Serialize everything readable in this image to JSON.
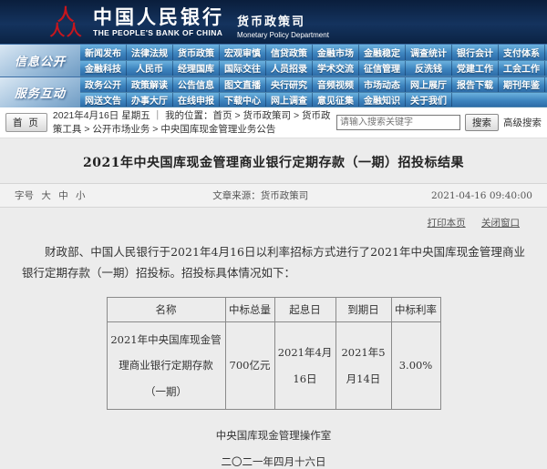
{
  "header": {
    "bank_cn": "中国人民银行",
    "bank_en": "THE PEOPLE'S BANK OF CHINA",
    "dept_cn": "货币政策司",
    "dept_en": "Monetary Policy Department"
  },
  "nav": {
    "sections": [
      {
        "label": "信息公开",
        "rows": [
          [
            "新闻发布",
            "法律法规",
            "货币政策",
            "宏观审慎",
            "信贷政策",
            "金融市场",
            "金融稳定",
            "调查统计",
            "银行会计",
            "支付体系"
          ],
          [
            "金融科技",
            "人民币",
            "经理国库",
            "国际交往",
            "人员招录",
            "学术交流",
            "征信管理",
            "反洗钱",
            "党建工作",
            "工会工作"
          ]
        ]
      },
      {
        "label": "服务互动",
        "rows": [
          [
            "政务公开",
            "政策解读",
            "公告信息",
            "图文直播",
            "央行研究",
            "音频视频",
            "市场动态",
            "网上展厅",
            "报告下载",
            "期刊年鉴"
          ],
          [
            "网送文告",
            "办事大厅",
            "在线申报",
            "下载中心",
            "网上调查",
            "意见征集",
            "金融知识",
            "关于我们"
          ]
        ]
      }
    ]
  },
  "breadcrumb": {
    "home_button": "首 页",
    "date": "2021年4月16日 星期五",
    "separator": "｜",
    "location": "我的位置：首页 > 货币政策司 > 货币政策工具 > 公开市场业务 > 中央国库现金管理业务公告",
    "search_placeholder": "请输入搜索关键字",
    "search_button": "搜索",
    "advanced_search": "高级搜索"
  },
  "article": {
    "title": "2021年中央国库现金管理商业银行定期存款（一期）招投标结果",
    "font_size_label": "字号",
    "font_sizes": [
      "大",
      "中",
      "小"
    ],
    "source": "文章来源：货币政策司",
    "datetime": "2021-04-16 09:40:00",
    "print_link": "打印本页",
    "close_link": "关闭窗口",
    "body": "财政部、中国人民银行于2021年4月16日以利率招标方式进行了2021年中央国库现金管理商业银行定期存款（一期）招投标。招投标具体情况如下：",
    "signature": "中央国库现金管理操作室",
    "sign_date": "二〇二一年四月十六日"
  },
  "table": {
    "headers": [
      "名称",
      "中标总量",
      "起息日",
      "到期日",
      "中标利率"
    ],
    "rows": [
      [
        "2021年中央国库现金管理商业银行定期存款（一期）",
        "700亿元",
        "2021年4月16日",
        "2021年5月14日",
        "3.00%"
      ]
    ]
  },
  "colors": {
    "banner_navy": "#14335e",
    "nav_blue": "#3e85bf",
    "logo_red": "#c8161d",
    "page_gray": "#ececec"
  }
}
